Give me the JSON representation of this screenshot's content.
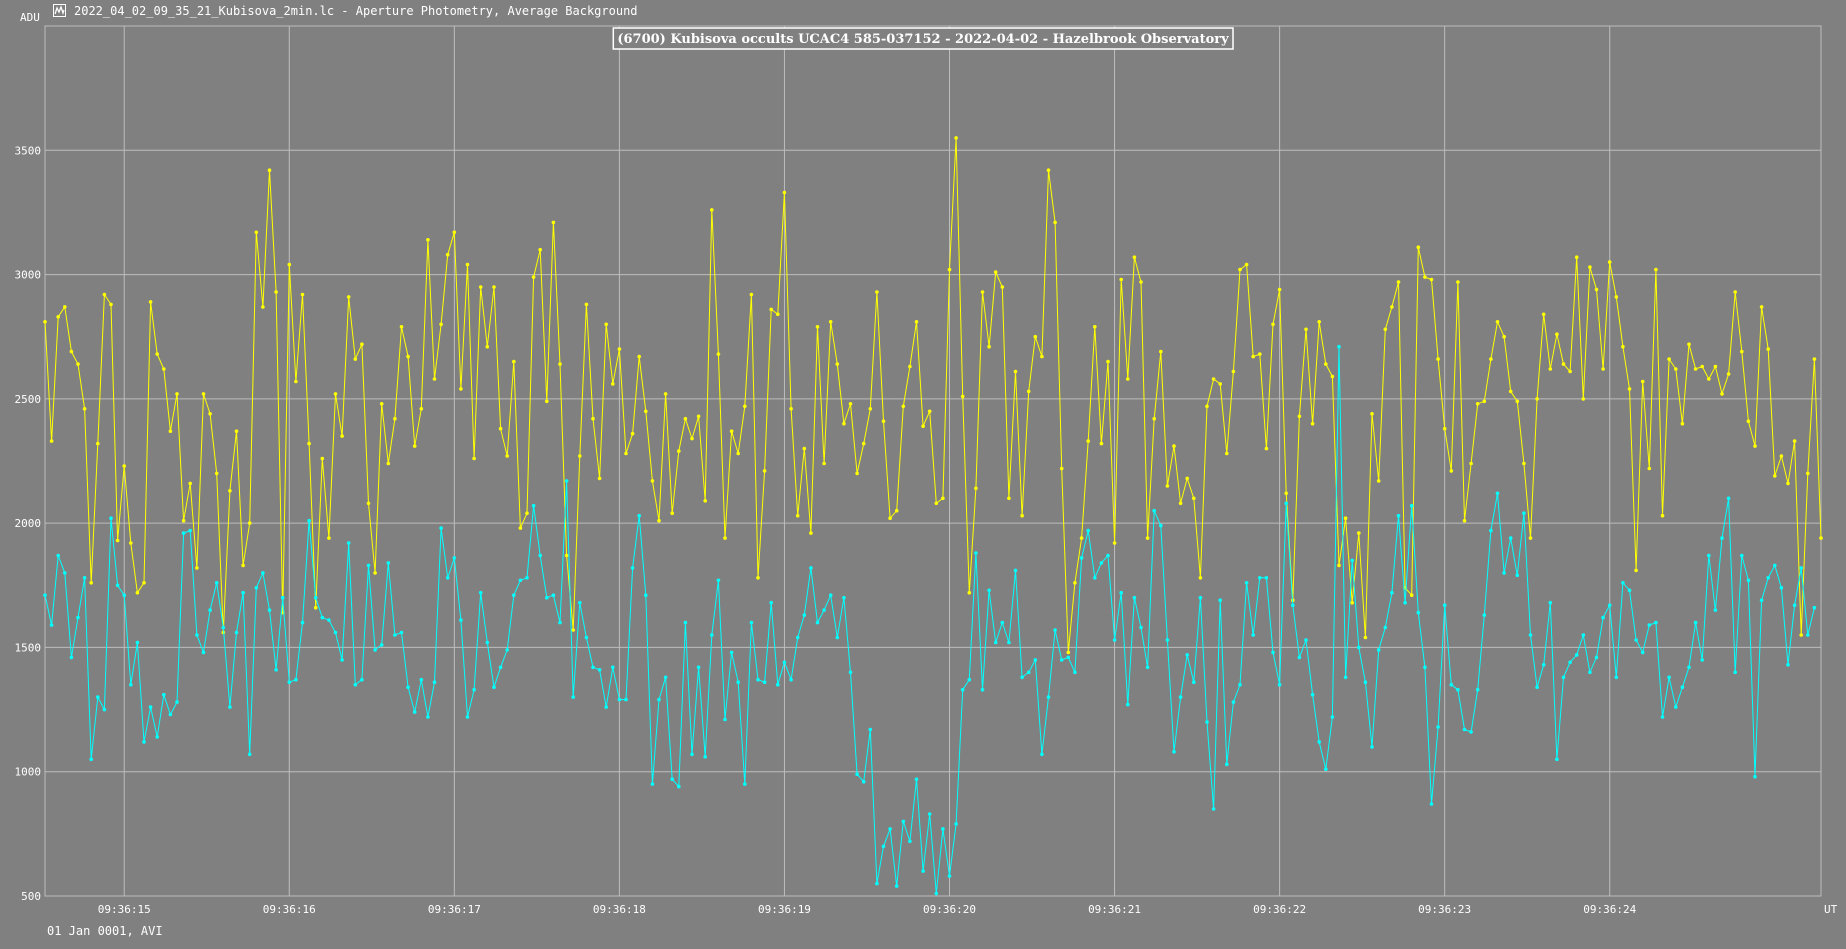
{
  "window": {
    "title": "2022_04_02_09_35_21_Kubisova_2min.lc - Aperture Photometry, Average Background",
    "unit_label": "ADU",
    "footer": "01 Jan 0001, AVI",
    "icon": "lightcurve-app-icon"
  },
  "colors": {
    "background": "#808080",
    "grid": "#bdbdbd",
    "target_series": "#ffff00",
    "comparison_series": "#00ffff"
  },
  "chart_data": {
    "type": "line",
    "title": "(6700) Kubisova occults UCAC4 585-037152 - 2022-04-02 - Hazelbrook Observatory",
    "xlabel": "UT",
    "ylabel": "ADU",
    "ylim": [
      500,
      4000
    ],
    "xlim": [
      14.52,
      25.28
    ],
    "y_ticks": [
      500,
      1000,
      1500,
      2000,
      2500,
      3000,
      3500
    ],
    "x_ticks": [
      {
        "value": 15,
        "label": "09:36:15"
      },
      {
        "value": 16,
        "label": "09:36:16"
      },
      {
        "value": 17,
        "label": "09:36:17"
      },
      {
        "value": 18,
        "label": "09:36:18"
      },
      {
        "value": 19,
        "label": "09:36:19"
      },
      {
        "value": 20,
        "label": "09:36:20"
      },
      {
        "value": 21,
        "label": "09:36:21"
      },
      {
        "value": 22,
        "label": "09:36:22"
      },
      {
        "value": 23,
        "label": "09:36:23"
      },
      {
        "value": 24,
        "label": "09:36:24"
      }
    ],
    "grid": true,
    "x_start": 14.52,
    "x_step": 0.04,
    "series": [
      {
        "color": "#ffff00",
        "values": [
          2810,
          2330,
          2830,
          2870,
          2690,
          2640,
          2460,
          1760,
          2320,
          2920,
          2880,
          1930,
          2230,
          1920,
          1720,
          1760,
          2890,
          2680,
          2620,
          2370,
          2520,
          2010,
          2160,
          1820,
          2520,
          2440,
          2200,
          1560,
          2130,
          2370,
          1830,
          2000,
          3170,
          2870,
          3420,
          2930,
          1640,
          3040,
          2570,
          2920,
          2320,
          1660,
          2260,
          1940,
          2520,
          2350,
          2910,
          2660,
          2720,
          2080,
          1800,
          2480,
          2240,
          2420,
          2790,
          2670,
          2310,
          2460,
          3140,
          2580,
          2800,
          3080,
          3170,
          2540,
          3040,
          2260,
          2950,
          2710,
          2950,
          2380,
          2270,
          2650,
          1980,
          2040,
          2990,
          3100,
          2490,
          3210,
          2640,
          1870,
          1570,
          2270,
          2880,
          2420,
          2180,
          2800,
          2560,
          2700,
          2280,
          2360,
          2670,
          2450,
          2170,
          2010,
          2520,
          2040,
          2290,
          2420,
          2340,
          2430,
          2090,
          3260,
          2680,
          1940,
          2370,
          2280,
          2470,
          2920,
          1780,
          2210,
          2860,
          2840,
          3330,
          2460,
          2030,
          2300,
          1960,
          2790,
          2240,
          2810,
          2640,
          2400,
          2480,
          2200,
          2320,
          2460,
          2930,
          2410,
          2020,
          2050,
          2470,
          2630,
          2810,
          2390,
          2450,
          2080,
          2100,
          3020,
          3550,
          2510,
          1720,
          2140,
          2930,
          2710,
          3010,
          2950,
          2100,
          2610,
          2030,
          2530,
          2750,
          2670,
          3420,
          3210,
          2220,
          1480,
          1760,
          1940,
          2330,
          2790,
          2320,
          2650,
          1920,
          2980,
          2580,
          3070,
          2970,
          1940,
          2420,
          2690,
          2150,
          2310,
          2080,
          2180,
          2100,
          1780,
          2470,
          2580,
          2560,
          2280,
          2610,
          3020,
          3040,
          2670,
          2680,
          2300,
          2800,
          2940,
          2120,
          1690,
          2430,
          2780,
          2400,
          2810,
          2640,
          2590,
          1830,
          2020,
          1680,
          1960,
          1540,
          2440,
          2170,
          2780,
          2870,
          2970,
          1740,
          1710,
          3110,
          2990,
          2980,
          2660,
          2380,
          2210,
          2970,
          2010,
          2240,
          2480,
          2490,
          2660,
          2810,
          2750,
          2530,
          2490,
          2240,
          1940,
          2500,
          2840,
          2620,
          2760,
          2640,
          2610,
          3070,
          2500,
          3030,
          2940,
          2620,
          3050,
          2910,
          2710,
          2540,
          1810,
          2570,
          2220,
          3020,
          2030,
          2660,
          2620,
          2400,
          2720,
          2620,
          2630,
          2580,
          2630,
          2520,
          2600,
          2930,
          2690,
          2410,
          2310,
          2870,
          2700,
          2190,
          2270,
          2160,
          2330,
          1550,
          2200,
          2660,
          1940
        ]
      },
      {
        "color": "#00ffff",
        "values": [
          1710,
          1590,
          1870,
          1800,
          1460,
          1620,
          1780,
          1050,
          1300,
          1250,
          2020,
          1750,
          1710,
          1350,
          1520,
          1120,
          1260,
          1140,
          1310,
          1230,
          1280,
          1960,
          1970,
          1550,
          1480,
          1650,
          1760,
          1580,
          1260,
          1560,
          1720,
          1070,
          1740,
          1800,
          1650,
          1410,
          1700,
          1360,
          1370,
          1600,
          2010,
          1700,
          1620,
          1610,
          1560,
          1450,
          1920,
          1350,
          1370,
          1830,
          1490,
          1510,
          1840,
          1550,
          1560,
          1340,
          1240,
          1370,
          1220,
          1360,
          1980,
          1780,
          1860,
          1610,
          1220,
          1330,
          1720,
          1520,
          1340,
          1420,
          1490,
          1710,
          1770,
          1780,
          2070,
          1870,
          1700,
          1710,
          1600,
          2170,
          1300,
          1680,
          1540,
          1420,
          1410,
          1260,
          1420,
          1290,
          1290,
          1820,
          2030,
          1710,
          950,
          1290,
          1380,
          970,
          940,
          1600,
          1070,
          1420,
          1060,
          1550,
          1770,
          1210,
          1480,
          1360,
          950,
          1600,
          1370,
          1360,
          1680,
          1350,
          1440,
          1370,
          1540,
          1630,
          1820,
          1600,
          1650,
          1710,
          1540,
          1700,
          1400,
          990,
          960,
          1170,
          550,
          700,
          770,
          540,
          800,
          720,
          970,
          600,
          830,
          510,
          770,
          580,
          790,
          1330,
          1370,
          1880,
          1330,
          1730,
          1520,
          1600,
          1520,
          1810,
          1380,
          1400,
          1450,
          1070,
          1300,
          1570,
          1450,
          1460,
          1400,
          1860,
          1970,
          1780,
          1840,
          1870,
          1530,
          1720,
          1270,
          1700,
          1580,
          1420,
          2050,
          1990,
          1530,
          1080,
          1300,
          1470,
          1360,
          1700,
          1200,
          850,
          1690,
          1030,
          1280,
          1350,
          1760,
          1550,
          1780,
          1780,
          1480,
          1350,
          2080,
          1670,
          1460,
          1530,
          1310,
          1120,
          1010,
          1220,
          2710,
          1380,
          1850,
          1500,
          1360,
          1100,
          1490,
          1580,
          1720,
          2030,
          1680,
          2070,
          1640,
          1420,
          870,
          1180,
          1670,
          1350,
          1330,
          1170,
          1160,
          1330,
          1630,
          1970,
          2120,
          1800,
          1940,
          1790,
          2040,
          1550,
          1340,
          1430,
          1680,
          1050,
          1380,
          1440,
          1470,
          1550,
          1400,
          1460,
          1620,
          1670,
          1380,
          1760,
          1730,
          1530,
          1480,
          1590,
          1600,
          1220,
          1380,
          1260,
          1340,
          1420,
          1600,
          1450,
          1870,
          1650,
          1940,
          2100,
          1400,
          1870,
          1770,
          980,
          1690,
          1780,
          1830,
          1740,
          1430,
          1670,
          1820,
          1550,
          1660
        ]
      }
    ]
  }
}
